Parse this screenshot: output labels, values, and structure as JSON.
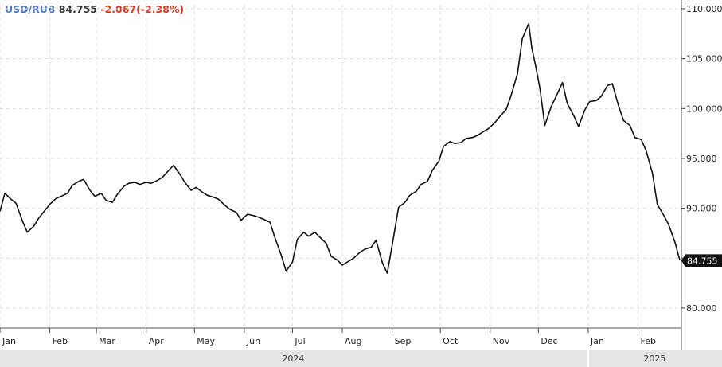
{
  "header": {
    "symbol": "USD/RUB",
    "last": "84.755",
    "change": "-2.067(-2.38%)"
  },
  "colors": {
    "symbol": "#4a78c8",
    "change": "#d9381e",
    "line": "#111111",
    "grid": "#dddddd",
    "footer": "#e6e6e6"
  },
  "chart_data": {
    "type": "line",
    "title": "",
    "xlabel": "",
    "ylabel": "",
    "ylim": [
      78.0,
      110.4
    ],
    "xlim": [
      "2024-01-01",
      "2025-02-28"
    ],
    "y_axis_position": "right",
    "grid": true,
    "y_ticks": [
      {
        "value": 80,
        "label": "80.000"
      },
      {
        "value": 85,
        "label": ""
      },
      {
        "value": 90,
        "label": "90.000"
      },
      {
        "value": 95,
        "label": "95.000"
      },
      {
        "value": 100,
        "label": "100.000"
      },
      {
        "value": 105,
        "label": "105.000"
      },
      {
        "value": 110,
        "label": "110.000"
      }
    ],
    "x_ticks": [
      {
        "date": "2024-01-01",
        "label": "Jan"
      },
      {
        "date": "2024-02-01",
        "label": "Feb"
      },
      {
        "date": "2024-03-01",
        "label": "Mar"
      },
      {
        "date": "2024-04-01",
        "label": "Apr"
      },
      {
        "date": "2024-05-01",
        "label": "May"
      },
      {
        "date": "2024-06-01",
        "label": "Jun"
      },
      {
        "date": "2024-07-01",
        "label": "Jul"
      },
      {
        "date": "2024-08-01",
        "label": "Aug"
      },
      {
        "date": "2024-09-01",
        "label": "Sep"
      },
      {
        "date": "2024-10-01",
        "label": "Oct"
      },
      {
        "date": "2024-11-01",
        "label": "Nov"
      },
      {
        "date": "2024-12-01",
        "label": "Dec"
      },
      {
        "date": "2025-01-01",
        "label": "Jan"
      },
      {
        "date": "2025-02-01",
        "label": "Feb"
      }
    ],
    "years": [
      {
        "label": "2024",
        "from": "2024-01-01",
        "to": "2024-12-31"
      },
      {
        "label": "2025",
        "from": "2025-01-01",
        "to": "2025-02-28"
      }
    ],
    "last_value": {
      "value": 84.755,
      "label": "84.755"
    },
    "series": [
      {
        "x": [
          "2024-01-01",
          "2024-01-04",
          "2024-01-08",
          "2024-01-11",
          "2024-01-15",
          "2024-01-18",
          "2024-01-22",
          "2024-01-25",
          "2024-01-29",
          "2024-02-01",
          "2024-02-05",
          "2024-02-08",
          "2024-02-12",
          "2024-02-15",
          "2024-02-19",
          "2024-02-22",
          "2024-02-26",
          "2024-02-29",
          "2024-03-04",
          "2024-03-07",
          "2024-03-11",
          "2024-03-14",
          "2024-03-18",
          "2024-03-21",
          "2024-03-25",
          "2024-03-28",
          "2024-04-01",
          "2024-04-04",
          "2024-04-08",
          "2024-04-11",
          "2024-04-15",
          "2024-04-18",
          "2024-04-22",
          "2024-04-25",
          "2024-04-29",
          "2024-05-02",
          "2024-05-06",
          "2024-05-09",
          "2024-05-13",
          "2024-05-16",
          "2024-05-20",
          "2024-05-23",
          "2024-05-27",
          "2024-05-30",
          "2024-06-03",
          "2024-06-06",
          "2024-06-10",
          "2024-06-13",
          "2024-06-17",
          "2024-06-20",
          "2024-06-24",
          "2024-06-27",
          "2024-07-01",
          "2024-07-04",
          "2024-07-08",
          "2024-07-11",
          "2024-07-15",
          "2024-07-18",
          "2024-07-22",
          "2024-07-25",
          "2024-07-29",
          "2024-08-01",
          "2024-08-05",
          "2024-08-08",
          "2024-08-12",
          "2024-08-15",
          "2024-08-19",
          "2024-08-22",
          "2024-08-26",
          "2024-08-29",
          "2024-09-02",
          "2024-09-05",
          "2024-09-09",
          "2024-09-12",
          "2024-09-16",
          "2024-09-19",
          "2024-09-23",
          "2024-09-26",
          "2024-09-30",
          "2024-10-03",
          "2024-10-07",
          "2024-10-10",
          "2024-10-14",
          "2024-10-17",
          "2024-10-21",
          "2024-10-24",
          "2024-10-28",
          "2024-10-31",
          "2024-11-04",
          "2024-11-07",
          "2024-11-11",
          "2024-11-14",
          "2024-11-18",
          "2024-11-21",
          "2024-11-25",
          "2024-11-27",
          "2024-11-29",
          "2024-12-02",
          "2024-12-05",
          "2024-12-09",
          "2024-12-12",
          "2024-12-16",
          "2024-12-19",
          "2024-12-23",
          "2024-12-26",
          "2024-12-30",
          "2025-01-02",
          "2025-01-06",
          "2025-01-09",
          "2025-01-13",
          "2025-01-16",
          "2025-01-20",
          "2025-01-23",
          "2025-01-27",
          "2025-01-30",
          "2025-02-03",
          "2025-02-06",
          "2025-02-10",
          "2025-02-13",
          "2025-02-17",
          "2025-02-20",
          "2025-02-24",
          "2025-02-27"
        ],
        "values": [
          89.7,
          91.5,
          90.9,
          90.5,
          88.7,
          87.6,
          88.2,
          89.0,
          89.8,
          90.4,
          91.0,
          91.2,
          91.5,
          92.3,
          92.7,
          92.9,
          91.8,
          91.2,
          91.5,
          90.8,
          90.6,
          91.4,
          92.2,
          92.5,
          92.6,
          92.4,
          92.6,
          92.5,
          92.8,
          93.1,
          93.8,
          94.3,
          93.4,
          92.6,
          91.8,
          92.1,
          91.6,
          91.3,
          91.1,
          90.9,
          90.3,
          89.9,
          89.6,
          88.8,
          89.4,
          89.3,
          89.1,
          88.9,
          88.6,
          87.1,
          85.3,
          83.7,
          84.6,
          86.9,
          87.6,
          87.2,
          87.6,
          87.1,
          86.5,
          85.2,
          84.8,
          84.3,
          84.7,
          85.0,
          85.6,
          85.9,
          86.1,
          86.8,
          84.5,
          83.5,
          87.2,
          90.1,
          90.6,
          91.3,
          91.7,
          92.4,
          92.7,
          93.8,
          94.7,
          96.2,
          96.7,
          96.5,
          96.6,
          97.0,
          97.1,
          97.3,
          97.7,
          98.0,
          98.6,
          99.2,
          99.9,
          101.3,
          103.5,
          107.0,
          108.5,
          106.0,
          104.5,
          102.0,
          98.3,
          100.2,
          101.2,
          102.6,
          100.5,
          99.3,
          98.2,
          99.9,
          100.7,
          100.8,
          101.2,
          102.3,
          102.5,
          100.2,
          98.8,
          98.3,
          97.1,
          96.9,
          95.8,
          93.5,
          90.4,
          89.3,
          88.4,
          86.6,
          84.8
        ]
      }
    ]
  }
}
